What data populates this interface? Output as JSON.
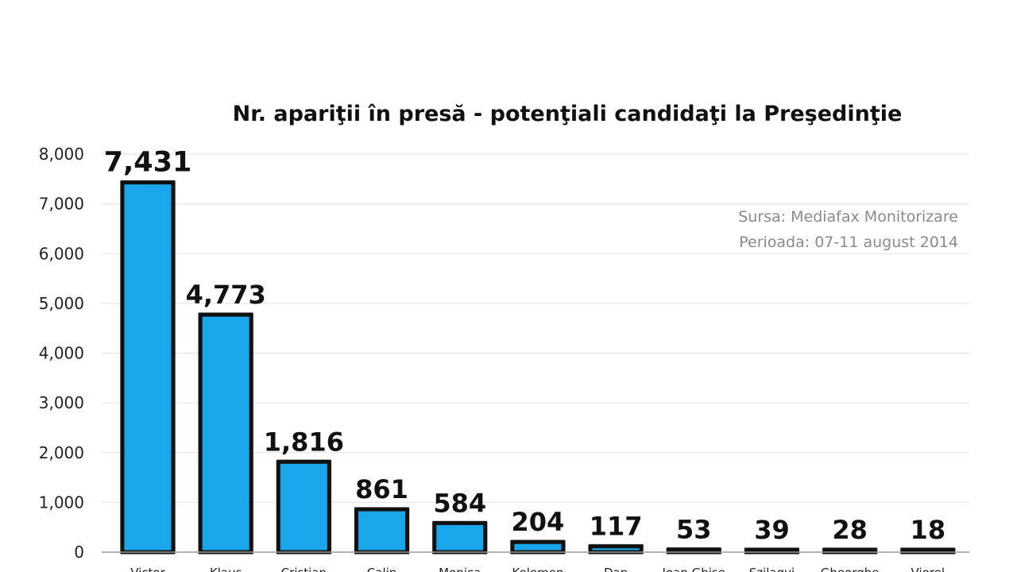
{
  "chart_data": {
    "type": "bar",
    "title": "Nr. apariţii în presă  - potenţiali candidaţi la Preşedinţie",
    "xlabel": "",
    "ylabel": "",
    "ylim": [
      0,
      8000
    ],
    "yticks": [
      0,
      1000,
      2000,
      3000,
      4000,
      5000,
      6000,
      7000,
      8000
    ],
    "ytick_labels": [
      "0",
      "1,000",
      "2,000",
      "3,000",
      "4,000",
      "5,000",
      "6,000",
      "7,000",
      "8,000"
    ],
    "grid": true,
    "categories": [
      "Victor",
      "Klaus",
      "Cristian",
      "Calin",
      "Monica",
      "Kelemen",
      "Dan",
      "Ioan Ghise",
      "Szilagyi",
      "Gheorghe",
      "Viorel"
    ],
    "values": [
      7431,
      4773,
      1816,
      861,
      584,
      204,
      117,
      53,
      39,
      28,
      18
    ],
    "value_labels": [
      "7,431",
      "4,773",
      "1,816",
      "861",
      "584",
      "204",
      "117",
      "53",
      "39",
      "28",
      "18"
    ],
    "bar_color": "#19a6ea",
    "bar_edge_color": "#111111",
    "annotations": [
      "Sursa: Mediafax Monitorizare",
      "Perioada: 07-11 august 2014"
    ]
  }
}
